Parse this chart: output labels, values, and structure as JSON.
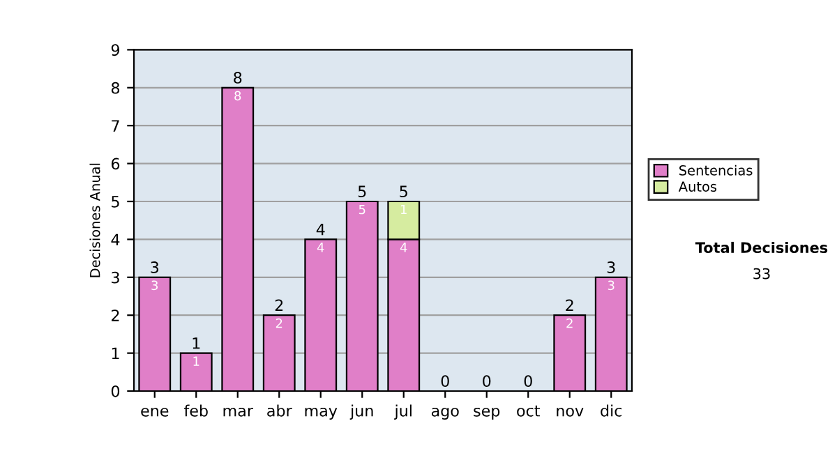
{
  "chart_data": {
    "type": "bar",
    "ylabel": "Decisiones Anual",
    "categories": [
      "ene",
      "feb",
      "mar",
      "abr",
      "may",
      "jun",
      "jul",
      "ago",
      "sep",
      "oct",
      "nov",
      "dic"
    ],
    "stacked": true,
    "series": [
      {
        "name": "Sentencias",
        "color": "#e07fc8",
        "values": [
          3,
          1,
          8,
          2,
          4,
          5,
          4,
          0,
          0,
          0,
          2,
          3
        ],
        "value_labels": [
          "3",
          "1",
          "8",
          "2",
          "4",
          "5",
          "4",
          null,
          null,
          null,
          "2",
          "3"
        ]
      },
      {
        "name": "Autos",
        "color": "#d6eca0",
        "values": [
          0,
          0,
          0,
          0,
          0,
          0,
          1,
          0,
          0,
          0,
          0,
          0
        ],
        "value_labels": [
          null,
          null,
          null,
          null,
          null,
          null,
          "1",
          null,
          null,
          null,
          null,
          null
        ]
      }
    ],
    "totals": [
      "3",
      "1",
      "8",
      "2",
      "4",
      "5",
      "5",
      "0",
      "0",
      "0",
      "2",
      "3"
    ],
    "ylim": [
      0,
      9
    ],
    "yticks": [
      0,
      1,
      2,
      3,
      4,
      5,
      6,
      7,
      8,
      9
    ],
    "grid": "y",
    "legend": "right",
    "annotations": [
      "Total Decisiones",
      "33"
    ]
  }
}
